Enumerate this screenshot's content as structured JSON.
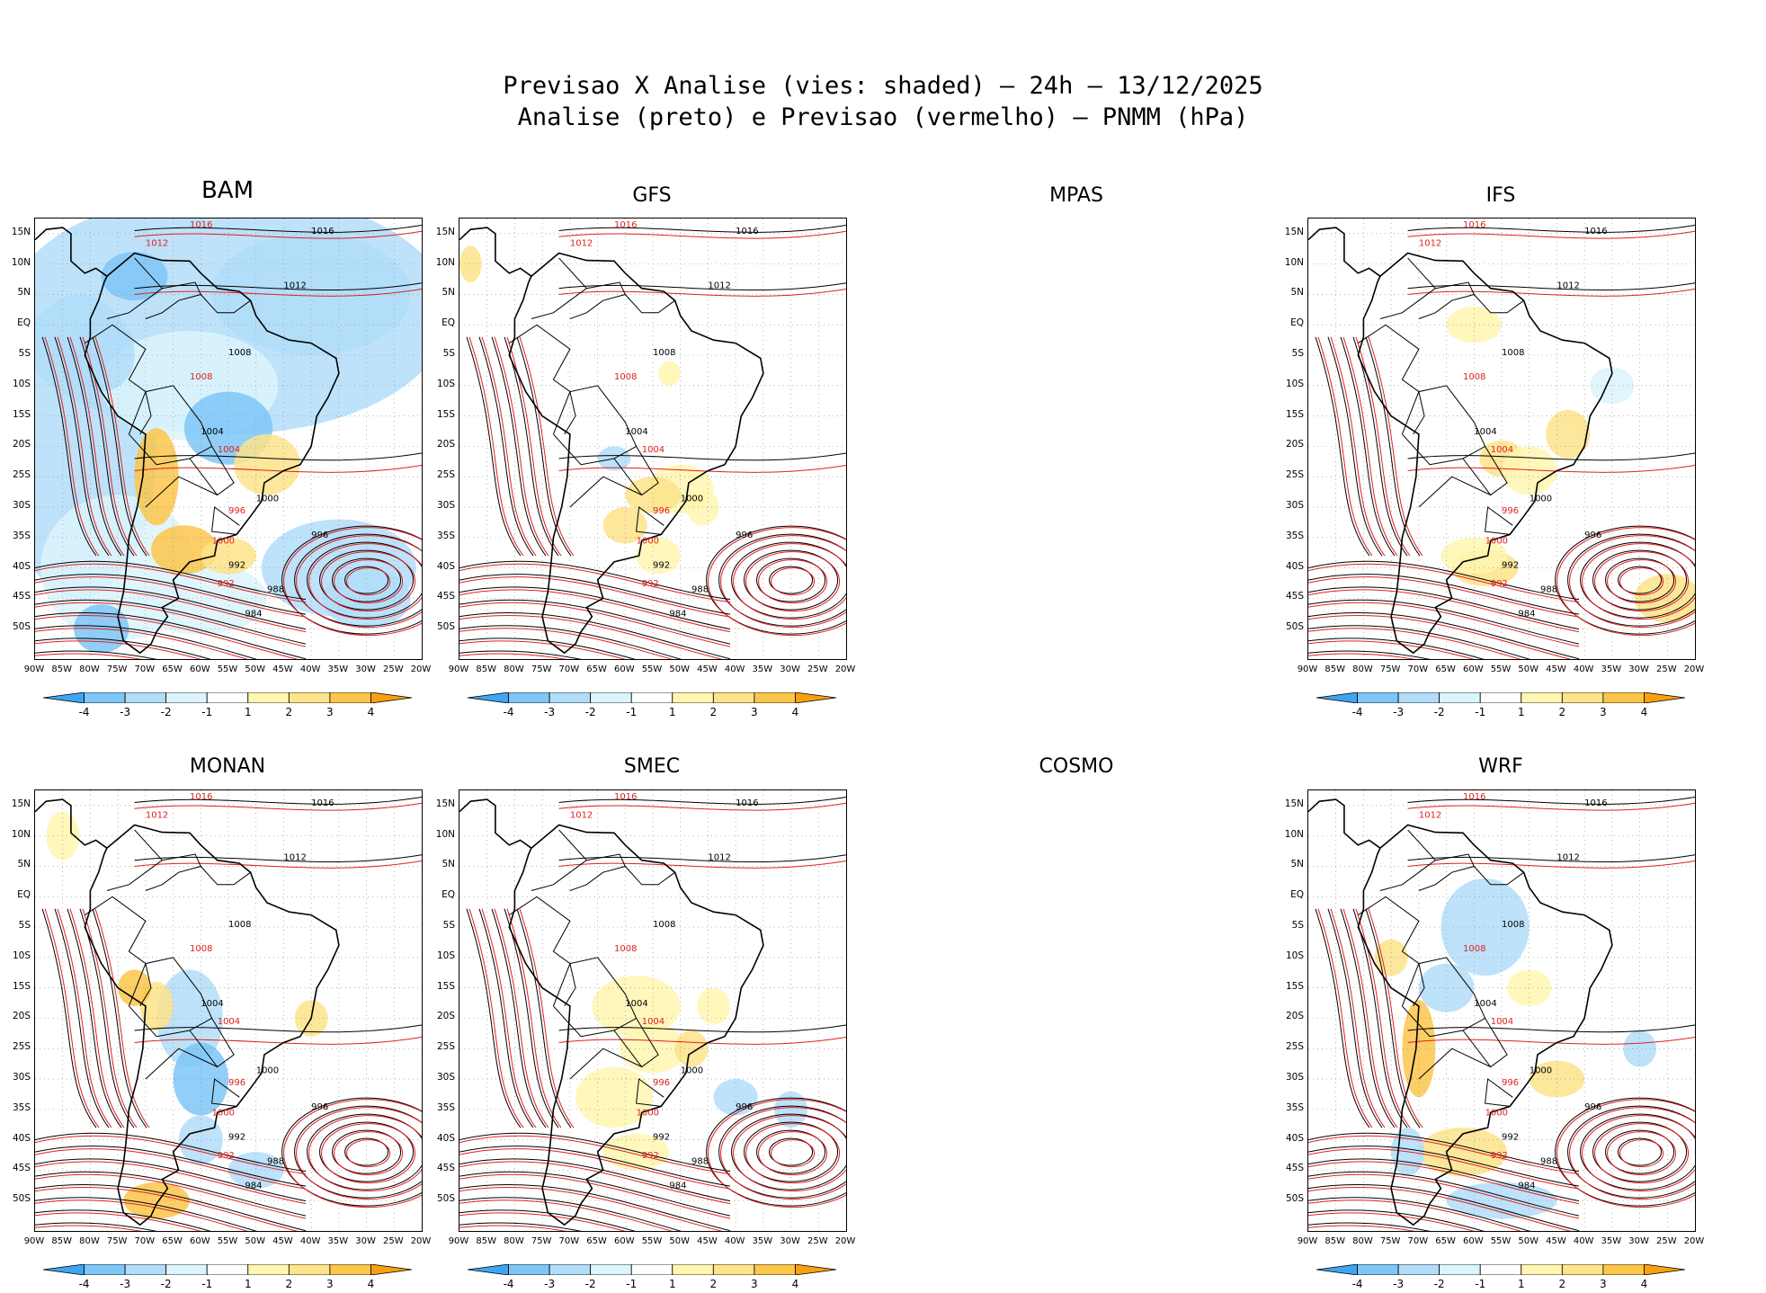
{
  "title": {
    "line1": "Previsao X Analise (vies: shaded) – 24h – 13/12/2025",
    "line2": "Analise (preto) e Previsao (vermelho) – PNMM (hPa)"
  },
  "panels": [
    {
      "name": "BAM",
      "has_map": true,
      "bias": "negative-dominant"
    },
    {
      "name": "GFS",
      "has_map": true,
      "bias": "mixed"
    },
    {
      "name": "MPAS",
      "has_map": false
    },
    {
      "name": "IFS",
      "has_map": true,
      "bias": "mixed"
    },
    {
      "name": "MONAN",
      "has_map": true,
      "bias": "mixed"
    },
    {
      "name": "SMEC",
      "has_map": true,
      "bias": "positive"
    },
    {
      "name": "COSMO",
      "has_map": false
    },
    {
      "name": "WRF",
      "has_map": true,
      "bias": "mixed"
    }
  ],
  "lat_labels": [
    "15N",
    "10N",
    "5N",
    "EQ",
    "5S",
    "10S",
    "15S",
    "20S",
    "25S",
    "30S",
    "35S",
    "40S",
    "45S",
    "50S"
  ],
  "lon_labels": [
    "90W",
    "85W",
    "80W",
    "75W",
    "70W",
    "65W",
    "60W",
    "55W",
    "50W",
    "45W",
    "40W",
    "35W",
    "30W",
    "25W",
    "20W"
  ],
  "colorbar": {
    "ticks": [
      "-4",
      "-3",
      "-2",
      "-1",
      "1",
      "2",
      "3",
      "4"
    ],
    "colors": [
      "#3ea6f0",
      "#7ec6f7",
      "#b2ddf9",
      "#dcf4fb",
      "#ffffff",
      "#fff6b0",
      "#fde38a",
      "#fbc64a",
      "#f8a012"
    ]
  },
  "contour_labels": {
    "analysis": [
      "1016",
      "1012",
      "1008",
      "1004",
      "1000",
      "996",
      "992",
      "988",
      "984"
    ],
    "forecast": [
      "1016",
      "1012",
      "1008",
      "1004",
      "1000",
      "996",
      "992"
    ]
  },
  "colors": {
    "analysis": "#000000",
    "forecast": "#e02020"
  }
}
